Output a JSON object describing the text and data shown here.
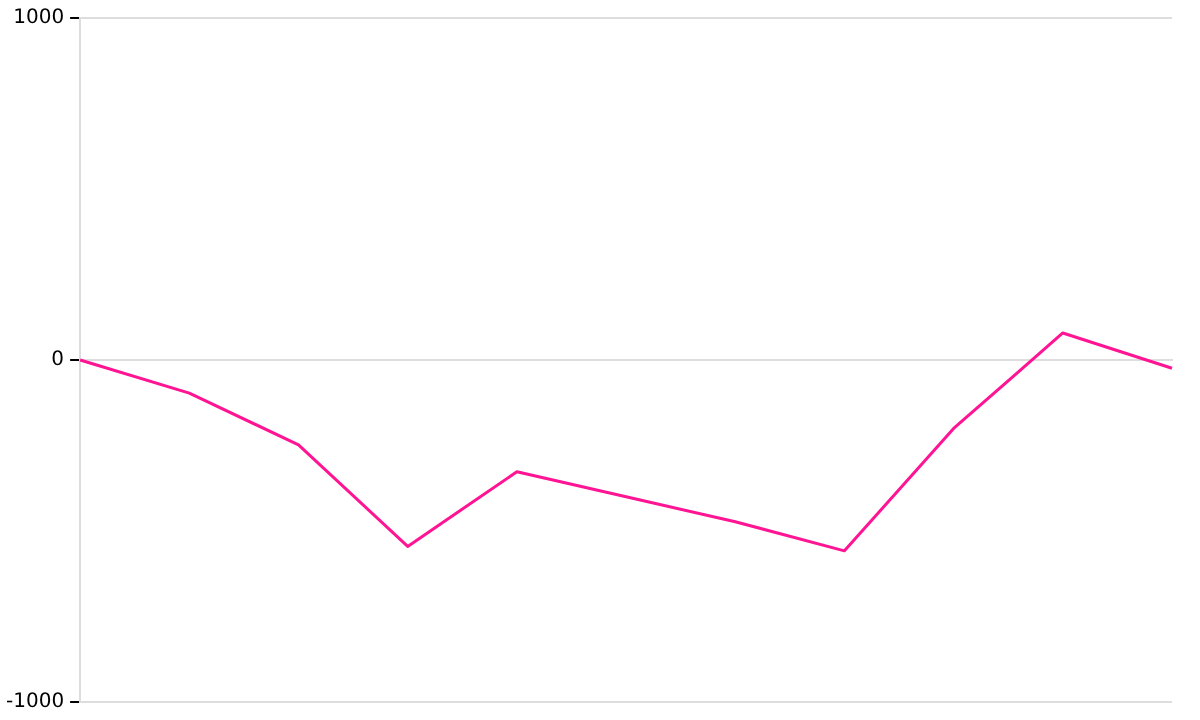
{
  "chart_data": {
    "type": "line",
    "categories": [
      null,
      null,
      null,
      null,
      null,
      null,
      null,
      null,
      null,
      null,
      null
    ],
    "ylim": [
      -1000,
      1000
    ],
    "yticks": [
      -1000,
      0,
      1000
    ],
    "tick_labels": "y",
    "grid": "y",
    "legend": false,
    "marker": "none",
    "line_style": "solid",
    "series": [
      {
        "color": "#ff1493",
        "values": [
          0,
          -97,
          -248,
          -545,
          -327,
          -400,
          -473,
          -558,
          -200,
          79,
          -24
        ]
      }
    ]
  }
}
